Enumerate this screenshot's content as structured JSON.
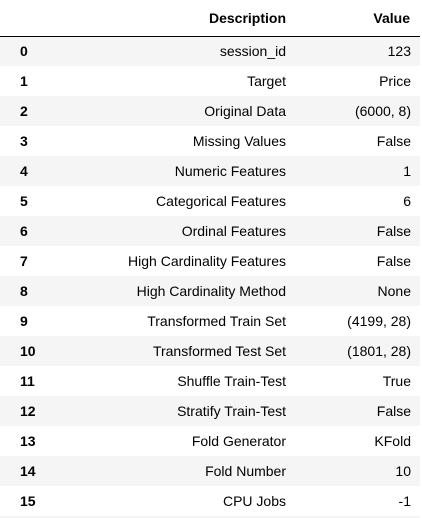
{
  "table": {
    "headers": {
      "index": "",
      "description": "Description",
      "value": "Value"
    },
    "rows": [
      {
        "index": "0",
        "description": "session_id",
        "value": "123"
      },
      {
        "index": "1",
        "description": "Target",
        "value": "Price"
      },
      {
        "index": "2",
        "description": "Original Data",
        "value": "(6000, 8)"
      },
      {
        "index": "3",
        "description": "Missing Values",
        "value": "False"
      },
      {
        "index": "4",
        "description": "Numeric Features",
        "value": "1"
      },
      {
        "index": "5",
        "description": "Categorical Features",
        "value": "6"
      },
      {
        "index": "6",
        "description": "Ordinal Features",
        "value": "False"
      },
      {
        "index": "7",
        "description": "High Cardinality Features",
        "value": "False"
      },
      {
        "index": "8",
        "description": "High Cardinality Method",
        "value": "None"
      },
      {
        "index": "9",
        "description": "Transformed Train Set",
        "value": "(4199, 28)"
      },
      {
        "index": "10",
        "description": "Transformed Test Set",
        "value": "(1801, 28)"
      },
      {
        "index": "11",
        "description": "Shuffle Train-Test",
        "value": "True"
      },
      {
        "index": "12",
        "description": "Stratify Train-Test",
        "value": "False"
      },
      {
        "index": "13",
        "description": "Fold Generator",
        "value": "KFold"
      },
      {
        "index": "14",
        "description": "Fold Number",
        "value": "10"
      },
      {
        "index": "15",
        "description": "CPU Jobs",
        "value": "-1"
      }
    ]
  },
  "colors": {
    "stripe": "#f5f5f5",
    "background": "#ffffff",
    "text": "#000000",
    "header_border": "#000000"
  }
}
